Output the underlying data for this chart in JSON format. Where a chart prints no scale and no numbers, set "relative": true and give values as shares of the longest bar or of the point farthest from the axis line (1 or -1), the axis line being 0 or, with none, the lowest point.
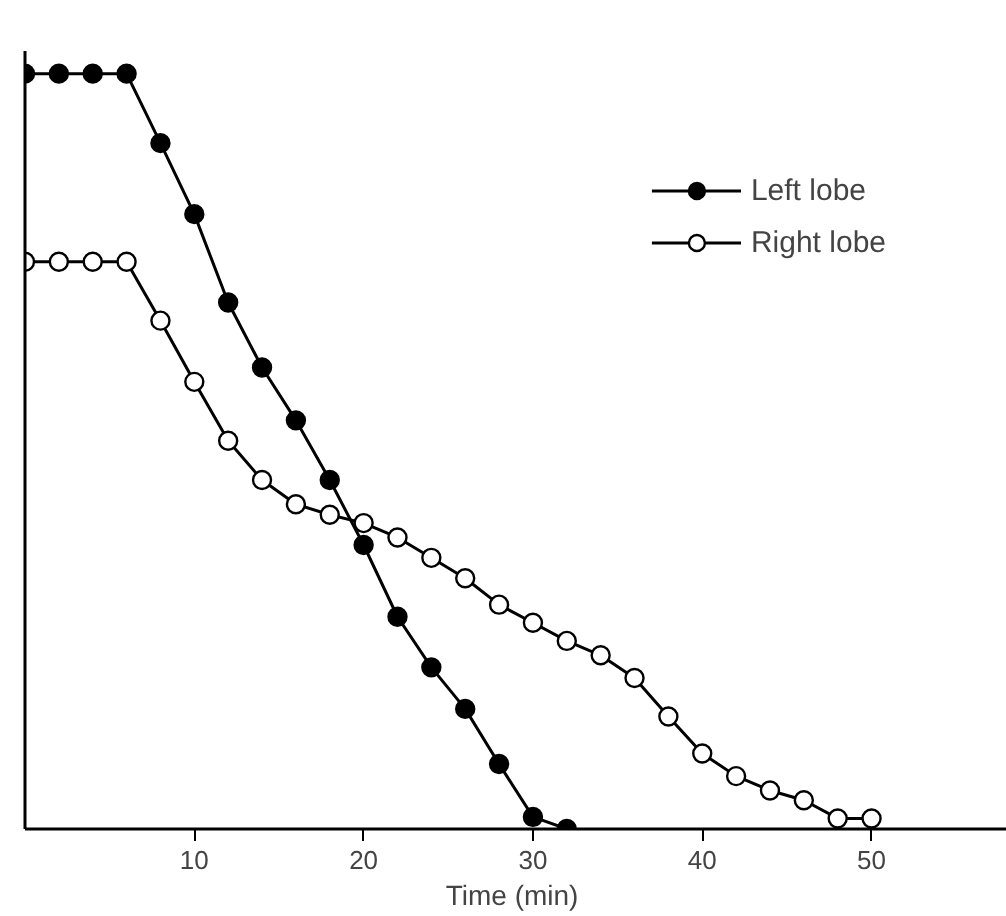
{
  "chart_data": {
    "type": "line",
    "relative": true,
    "xlabel": "Time  (min)",
    "xlim": [
      0,
      58
    ],
    "xticks": [
      10,
      20,
      30,
      40,
      50
    ],
    "marker": "circle",
    "line_style": "solid",
    "grid": false,
    "legend": "top right",
    "series": [
      {
        "name": "Left lobe",
        "color": "#000000",
        "x": [
          0,
          2,
          4,
          6,
          8,
          10,
          12,
          14,
          16,
          18,
          20,
          22,
          24,
          26,
          28,
          30,
          32
        ],
        "values": [
          1.0,
          1.0,
          1.0,
          1.0,
          0.908,
          0.814,
          0.697,
          0.611,
          0.541,
          0.462,
          0.376,
          0.281,
          0.214,
          0.159,
          0.086,
          0.016,
          0.0
        ]
      },
      {
        "name": "Right lobe",
        "color": "#000000",
        "x": [
          0,
          2,
          4,
          6,
          8,
          10,
          12,
          14,
          16,
          18,
          20,
          22,
          24,
          26,
          28,
          30,
          32,
          34,
          36,
          38,
          40,
          42,
          44,
          46,
          48,
          50
        ],
        "values": [
          0.751,
          0.751,
          0.751,
          0.751,
          0.673,
          0.592,
          0.514,
          0.462,
          0.43,
          0.416,
          0.405,
          0.386,
          0.359,
          0.332,
          0.297,
          0.273,
          0.249,
          0.23,
          0.2,
          0.149,
          0.1,
          0.07,
          0.051,
          0.038,
          0.014,
          0.014
        ]
      }
    ]
  }
}
